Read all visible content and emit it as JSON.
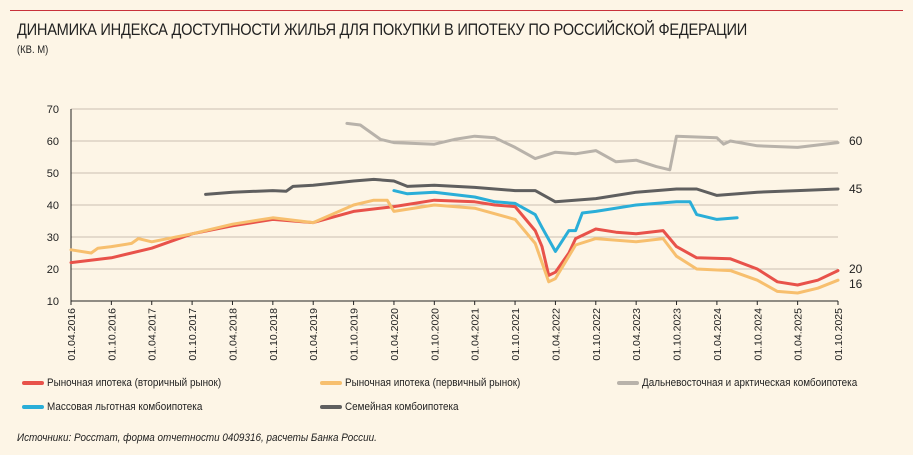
{
  "title": "ДИНАМИКА ИНДЕКСА ДОСТУПНОСТИ ЖИЛЬЯ ДЛЯ ПОКУПКИ В ИПОТЕКУ ПО РОССИЙСКОЙ ФЕДЕРАЦИИ",
  "subtitle": "(КВ. М)",
  "source": "Источники: Росстат, форма отчетности 0409316, расчеты Банка России.",
  "chart_data": {
    "type": "line",
    "ylim": [
      10,
      70
    ],
    "yticks": [
      10,
      20,
      30,
      40,
      50,
      60,
      70
    ],
    "xlim": [
      "2016-04",
      "2025-10"
    ],
    "xticks": [
      "01.04.2016",
      "01.10.2016",
      "01.04.2017",
      "01.10.2017",
      "01.04.2018",
      "01.10.2018",
      "01.04.2019",
      "01.10.2019",
      "01.04.2020",
      "01.10.2020",
      "01.04.2021",
      "01.10.2021",
      "01.04.2022",
      "01.10.2022",
      "01.04.2023",
      "01.10.2023",
      "01.04.2024",
      "01.10.2024",
      "01.04.2025",
      "01.10.2025"
    ],
    "grid": "horizontal",
    "legend_placement": "bottom",
    "end_labels": [
      "60",
      "45",
      "20",
      "16"
    ],
    "series": [
      {
        "name": "Рыночная ипотека (вторичный рынок)",
        "color": "#e8524a",
        "points": [
          [
            "2016-04",
            22
          ],
          [
            "2016-10",
            23.5
          ],
          [
            "2017-04",
            26.5
          ],
          [
            "2017-10",
            31
          ],
          [
            "2018-04",
            33.5
          ],
          [
            "2018-10",
            35.5
          ],
          [
            "2019-04",
            34.5
          ],
          [
            "2019-10",
            38
          ],
          [
            "2020-04",
            39.5
          ],
          [
            "2020-10",
            41.5
          ],
          [
            "2021-04",
            41
          ],
          [
            "2021-07",
            40
          ],
          [
            "2021-10",
            39.5
          ],
          [
            "2022-01",
            32
          ],
          [
            "2022-02",
            27
          ],
          [
            "2022-03",
            18
          ],
          [
            "2022-04",
            19
          ],
          [
            "2022-06",
            25
          ],
          [
            "2022-07",
            29.5
          ],
          [
            "2022-10",
            32.5
          ],
          [
            "2023-01",
            31.5
          ],
          [
            "2023-04",
            31
          ],
          [
            "2023-08",
            32
          ],
          [
            "2023-10",
            27
          ],
          [
            "2024-01",
            23.5
          ],
          [
            "2024-06",
            23.2
          ],
          [
            "2024-10",
            20
          ],
          [
            "2025-01",
            16
          ],
          [
            "2025-04",
            15
          ],
          [
            "2025-07",
            16.5
          ],
          [
            "2025-10",
            19.5
          ]
        ]
      },
      {
        "name": "Рыночная ипотека (первичный рынок)",
        "color": "#f7bf6e",
        "points": [
          [
            "2016-04",
            26
          ],
          [
            "2016-07",
            25
          ],
          [
            "2016-08",
            26.5
          ],
          [
            "2016-10",
            27
          ],
          [
            "2017-01",
            28
          ],
          [
            "2017-02",
            29.5
          ],
          [
            "2017-04",
            28.5
          ],
          [
            "2017-10",
            31
          ],
          [
            "2018-04",
            34
          ],
          [
            "2018-10",
            36
          ],
          [
            "2019-04",
            34.5
          ],
          [
            "2019-10",
            40
          ],
          [
            "2020-01",
            41.5
          ],
          [
            "2020-03",
            41.5
          ],
          [
            "2020-04",
            38
          ],
          [
            "2020-10",
            40
          ],
          [
            "2021-04",
            39
          ],
          [
            "2021-10",
            35.5
          ],
          [
            "2022-01",
            28
          ],
          [
            "2022-02",
            22
          ],
          [
            "2022-03",
            16
          ],
          [
            "2022-04",
            17
          ],
          [
            "2022-07",
            27.5
          ],
          [
            "2022-10",
            29.5
          ],
          [
            "2023-04",
            28.5
          ],
          [
            "2023-08",
            29.5
          ],
          [
            "2023-10",
            24
          ],
          [
            "2024-01",
            20
          ],
          [
            "2024-06",
            19.5
          ],
          [
            "2024-10",
            16.5
          ],
          [
            "2025-01",
            13
          ],
          [
            "2025-04",
            12.5
          ],
          [
            "2025-07",
            14
          ],
          [
            "2025-10",
            16.5
          ]
        ]
      },
      {
        "name": "Дальневосточная и арктическая комбоипотека",
        "color": "#b8b2aa",
        "points": [
          [
            "2019-09",
            65.5
          ],
          [
            "2019-11",
            65
          ],
          [
            "2020-02",
            60.5
          ],
          [
            "2020-04",
            59.5
          ],
          [
            "2020-10",
            59
          ],
          [
            "2021-01",
            60.5
          ],
          [
            "2021-04",
            61.5
          ],
          [
            "2021-07",
            61
          ],
          [
            "2021-10",
            58
          ],
          [
            "2022-01",
            54.5
          ],
          [
            "2022-04",
            56.5
          ],
          [
            "2022-07",
            56
          ],
          [
            "2022-10",
            57
          ],
          [
            "2023-01",
            53.5
          ],
          [
            "2023-04",
            54
          ],
          [
            "2023-07",
            52
          ],
          [
            "2023-09",
            51
          ],
          [
            "2023-10",
            61.5
          ],
          [
            "2024-04",
            61
          ],
          [
            "2024-05",
            59
          ],
          [
            "2024-06",
            60
          ],
          [
            "2024-10",
            58.5
          ],
          [
            "2025-04",
            58
          ],
          [
            "2025-10",
            59.5
          ]
        ]
      },
      {
        "name": "Массовая льготная комбоипотека",
        "color": "#2aaed8",
        "points": [
          [
            "2020-04",
            44.5
          ],
          [
            "2020-06",
            43.5
          ],
          [
            "2020-10",
            44
          ],
          [
            "2021-04",
            42.5
          ],
          [
            "2021-07",
            41
          ],
          [
            "2021-10",
            40.5
          ],
          [
            "2022-01",
            37
          ],
          [
            "2022-02",
            33
          ],
          [
            "2022-04",
            25.5
          ],
          [
            "2022-06",
            32
          ],
          [
            "2022-07",
            32
          ],
          [
            "2022-08",
            37.5
          ],
          [
            "2022-10",
            38
          ],
          [
            "2023-04",
            40
          ],
          [
            "2023-10",
            41
          ],
          [
            "2023-12",
            41
          ],
          [
            "2024-01",
            37
          ],
          [
            "2024-04",
            35.5
          ],
          [
            "2024-07",
            36
          ]
        ]
      },
      {
        "name": "Семейная комбоипотека",
        "color": "#5f5f5f",
        "points": [
          [
            "2017-12",
            43.3
          ],
          [
            "2018-04",
            44
          ],
          [
            "2018-10",
            44.5
          ],
          [
            "2018-12",
            44.3
          ],
          [
            "2019-01",
            45.8
          ],
          [
            "2019-04",
            46.2
          ],
          [
            "2019-10",
            47.5
          ],
          [
            "2020-01",
            48
          ],
          [
            "2020-04",
            47.5
          ],
          [
            "2020-06",
            45.8
          ],
          [
            "2020-10",
            46.2
          ],
          [
            "2021-04",
            45.5
          ],
          [
            "2021-10",
            44.5
          ],
          [
            "2022-01",
            44.5
          ],
          [
            "2022-04",
            41
          ],
          [
            "2022-10",
            42
          ],
          [
            "2023-04",
            44
          ],
          [
            "2023-10",
            45
          ],
          [
            "2024-01",
            45
          ],
          [
            "2024-04",
            43
          ],
          [
            "2024-10",
            44
          ],
          [
            "2025-04",
            44.5
          ],
          [
            "2025-10",
            45
          ]
        ]
      }
    ]
  }
}
